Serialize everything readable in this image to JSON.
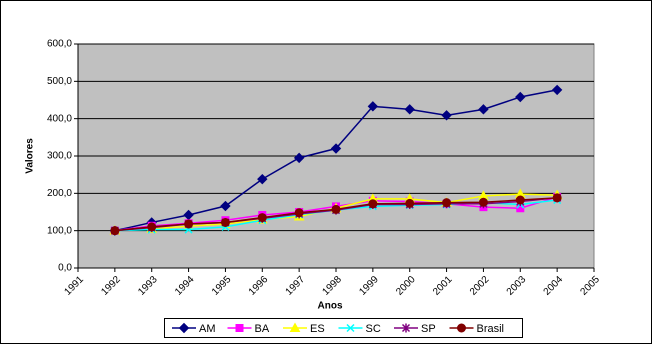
{
  "chart_data": {
    "type": "line",
    "x": [
      1992,
      1993,
      1994,
      1995,
      1996,
      1997,
      1998,
      1999,
      2000,
      2001,
      2002,
      2003,
      2004
    ],
    "series": [
      {
        "name": "AM",
        "color": "#000080",
        "marker": "diamond",
        "values": [
          100,
          122,
          142,
          166,
          238,
          295,
          320,
          433,
          425,
          409,
          425,
          458,
          477
        ]
      },
      {
        "name": "BA",
        "color": "#ff00ff",
        "marker": "square",
        "values": [
          100,
          113,
          120,
          128,
          142,
          150,
          165,
          180,
          178,
          172,
          163,
          160,
          190
        ]
      },
      {
        "name": "ES",
        "color": "#ffff00",
        "marker": "triangle",
        "values": [
          100,
          105,
          112,
          118,
          130,
          138,
          160,
          185,
          185,
          175,
          193,
          198,
          195
        ]
      },
      {
        "name": "SC",
        "color": "#00ffff",
        "marker": "x",
        "values": [
          100,
          103,
          103,
          110,
          128,
          143,
          155,
          165,
          168,
          170,
          175,
          170,
          182
        ]
      },
      {
        "name": "SP",
        "color": "#800080",
        "marker": "star",
        "values": [
          100,
          108,
          118,
          122,
          133,
          145,
          155,
          170,
          170,
          172,
          172,
          178,
          188
        ]
      },
      {
        "name": "Brasil",
        "color": "#800000",
        "marker": "circle",
        "values": [
          100,
          110,
          118,
          122,
          135,
          148,
          157,
          172,
          173,
          175,
          176,
          182,
          188
        ]
      }
    ],
    "xlabel": "Anos",
    "ylabel": "Valores",
    "xlim": [
      1991,
      2005
    ],
    "xticks": [
      1991,
      1992,
      1993,
      1994,
      1995,
      1996,
      1997,
      1998,
      1999,
      2000,
      2001,
      2002,
      2003,
      2004,
      2005
    ],
    "ylim": [
      0,
      600
    ],
    "yticks": [
      {
        "value": 0,
        "label": "0,0"
      },
      {
        "value": 100,
        "label": "100,0"
      },
      {
        "value": 200,
        "label": "200,0"
      },
      {
        "value": 300,
        "label": "300,0"
      },
      {
        "value": 400,
        "label": "400,0"
      },
      {
        "value": 500,
        "label": "500,0"
      },
      {
        "value": 600,
        "label": "600,0"
      }
    ],
    "grid": true,
    "legend": "bottom",
    "plot_background": "#c0c0c0"
  }
}
